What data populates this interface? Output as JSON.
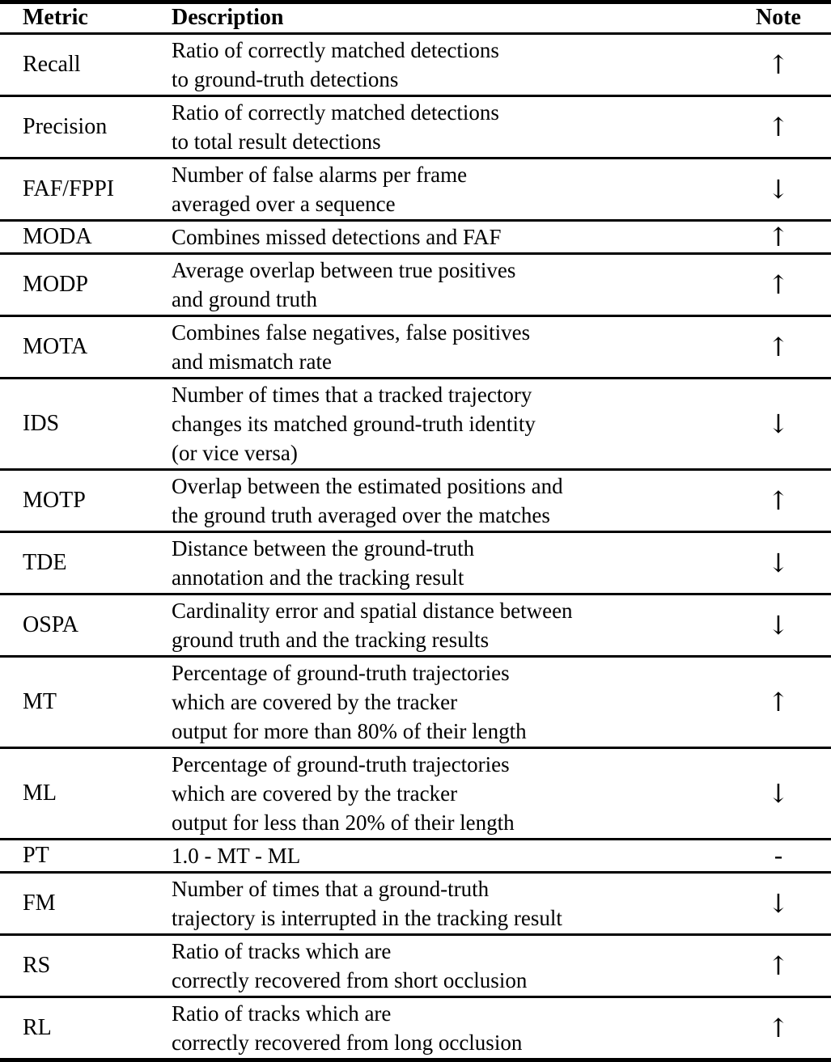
{
  "table": {
    "headers": [
      "Metric",
      "Description",
      "Note"
    ],
    "rows": [
      {
        "metric": "Recall",
        "description": "Ratio of correctly matched detections\nto ground-truth detections",
        "note": "↑"
      },
      {
        "metric": "Precision",
        "description": "Ratio of correctly matched detections\nto total result detections",
        "note": "↑"
      },
      {
        "metric": "FAF/FPPI",
        "description": "Number of false alarms per frame\naveraged over a sequence",
        "note": "↓"
      },
      {
        "metric": "MODA",
        "description": "Combines missed detections and FAF",
        "note": "↑"
      },
      {
        "metric": "MODP",
        "description": "Average overlap between true positives\nand ground truth",
        "note": "↑"
      },
      {
        "metric": "MOTA",
        "description": "Combines false negatives, false positives\nand mismatch rate",
        "note": "↑"
      },
      {
        "metric": "IDS",
        "description": "Number of times that a tracked trajectory\nchanges its matched ground-truth identity\n(or vice versa)",
        "note": "↓"
      },
      {
        "metric": "MOTP",
        "description": "Overlap between the estimated positions and\nthe ground truth averaged over the matches",
        "note": "↑"
      },
      {
        "metric": "TDE",
        "description": "Distance between the ground-truth\nannotation and the tracking result",
        "note": "↓"
      },
      {
        "metric": "OSPA",
        "description": "Cardinality error and spatial distance between\nground truth and the tracking results",
        "note": "↓"
      },
      {
        "metric": "MT",
        "description": "Percentage of ground-truth trajectories\nwhich are covered by the tracker\noutput for more than 80% of their length",
        "note": "↑"
      },
      {
        "metric": "ML",
        "description": "Percentage of ground-truth trajectories\nwhich are covered by the tracker\noutput for less than 20% of their length",
        "note": "↓"
      },
      {
        "metric": "PT",
        "description": "1.0 - MT - ML",
        "note": "-"
      },
      {
        "metric": "FM",
        "description": "Number of times that a ground-truth\ntrajectory is interrupted in the tracking result",
        "note": "↓"
      },
      {
        "metric": "RS",
        "description": "Ratio of tracks which are\ncorrectly recovered from short occlusion",
        "note": "↑"
      },
      {
        "metric": "RL",
        "description": "Ratio of tracks which are\ncorrectly recovered from long occlusion",
        "note": "↑"
      }
    ]
  },
  "colors": {
    "text": "#000000",
    "border": "#000000",
    "background": "#ffffff"
  }
}
